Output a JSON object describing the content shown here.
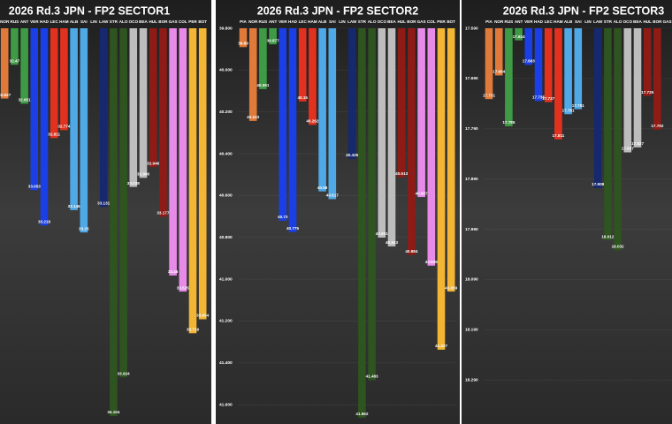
{
  "chart_data": [
    {
      "type": "bar",
      "title": "2026 Rd.3 JPN - FP2 SECTOR1",
      "categories": [
        "NOR",
        "RUS",
        "ANT",
        "VER",
        "HAD",
        "LEC",
        "HAM",
        "ALB",
        "SAI",
        "LIN",
        "LAW",
        "STR",
        "ALO",
        "OCO",
        "BEA",
        "HUL",
        "BOR",
        "GAS",
        "COL",
        "PER",
        "BOT"
      ],
      "values": [
        32.627,
        32.47,
        32.651,
        33.053,
        33.218,
        32.811,
        32.774,
        33.146,
        33.25,
        null,
        33.131,
        34.104,
        33.924,
        33.038,
        32.996,
        32.946,
        33.177,
        33.45,
        33.525,
        33.719,
        33.654
      ],
      "colors": [
        "#e07a3a",
        "#3f9a45",
        "#3f9a45",
        "#1a3fe6",
        "#1a3fe6",
        "#e2321f",
        "#e2321f",
        "#4fa9e6",
        "#4fa9e6",
        "#16286e",
        "#16286e",
        "#2e5420",
        "#2e5420",
        "#bdbdbd",
        "#bdbdbd",
        "#8e1b16",
        "#8e1b16",
        "#e88be8",
        "#e88be8",
        "#f2b534",
        "#f2b534"
      ],
      "ylim": [
        32.3,
        34.1
      ],
      "inverted": true
    },
    {
      "type": "bar",
      "title": "2026 Rd.3 JPN - FP2 SECTOR2",
      "categories": [
        "PIA",
        "NOR",
        "RUS",
        "ANT",
        "VER",
        "HAD",
        "LEC",
        "HAM",
        "ALB",
        "SAI",
        "LIN",
        "LAW",
        "STR",
        "ALO",
        "OCO",
        "BEA",
        "HUL",
        "BOR",
        "GAS",
        "COL",
        "PER",
        "BOT"
      ],
      "values": [
        39.89,
        40.243,
        40.091,
        39.877,
        40.72,
        40.775,
        40.15,
        40.262,
        40.58,
        40.617,
        null,
        40.425,
        41.662,
        41.483,
        40.801,
        40.843,
        40.513,
        40.884,
        40.607,
        40.935,
        41.337,
        41.059
      ],
      "colors": [
        "#e07a3a",
        "#e07a3a",
        "#3f9a45",
        "#3f9a45",
        "#1a3fe6",
        "#1a3fe6",
        "#e2321f",
        "#e2321f",
        "#4fa9e6",
        "#4fa9e6",
        "#16286e",
        "#16286e",
        "#2e5420",
        "#2e5420",
        "#bdbdbd",
        "#bdbdbd",
        "#8e1b16",
        "#8e1b16",
        "#e88be8",
        "#e88be8",
        "#f2b534",
        "#f2b534"
      ],
      "ylim": [
        39.8,
        41.65
      ],
      "inverted": true,
      "yticks": [
        {
          "value": 39.8,
          "label": "39.800"
        },
        {
          "value": 40.0,
          "label": "40.000"
        },
        {
          "value": 40.2,
          "label": "40.200"
        },
        {
          "value": 40.4,
          "label": "40.400"
        },
        {
          "value": 40.6,
          "label": "40.600"
        },
        {
          "value": 40.8,
          "label": "40.800"
        },
        {
          "value": 41.0,
          "label": "41.000"
        },
        {
          "value": 41.2,
          "label": "41.200"
        },
        {
          "value": 41.4,
          "label": "41.400"
        },
        {
          "value": 41.6,
          "label": "41.600"
        }
      ]
    },
    {
      "type": "bar",
      "title": "2026 Rd.3 JPN - FP2 SECTOR3",
      "categories": [
        "PIA",
        "NOR",
        "RUS",
        "ANT",
        "VER",
        "HAD",
        "LEC",
        "HAM",
        "ALB",
        "SAI",
        "LIN",
        "LAW",
        "STR",
        "ALO",
        "OCO",
        "BEA",
        "HUL",
        "BOR",
        "GAS"
      ],
      "values": [
        17.731,
        17.684,
        17.785,
        17.614,
        17.663,
        17.735,
        17.737,
        17.811,
        17.761,
        17.751,
        null,
        17.908,
        18.012,
        18.032,
        17.837,
        17.827,
        17.725,
        17.792,
        null
      ],
      "colors": [
        "#e07a3a",
        "#e07a3a",
        "#3f9a45",
        "#3f9a45",
        "#1a3fe6",
        "#1a3fe6",
        "#e2321f",
        "#e2321f",
        "#4fa9e6",
        "#4fa9e6",
        "#16286e",
        "#16286e",
        "#2e5420",
        "#2e5420",
        "#bdbdbd",
        "#bdbdbd",
        "#8e1b16",
        "#8e1b16",
        "#e88be8"
      ],
      "ylim": [
        17.59,
        18.36
      ],
      "inverted": true,
      "yticks": [
        {
          "value": 17.59,
          "label": "17.590"
        },
        {
          "value": 17.69,
          "label": "17.690"
        },
        {
          "value": 17.79,
          "label": "17.790"
        },
        {
          "value": 17.89,
          "label": "17.890"
        },
        {
          "value": 17.99,
          "label": "17.990"
        },
        {
          "value": 18.09,
          "label": "18.090"
        },
        {
          "value": 18.19,
          "label": "18.190"
        },
        {
          "value": 18.29,
          "label": "18.290"
        }
      ]
    }
  ]
}
